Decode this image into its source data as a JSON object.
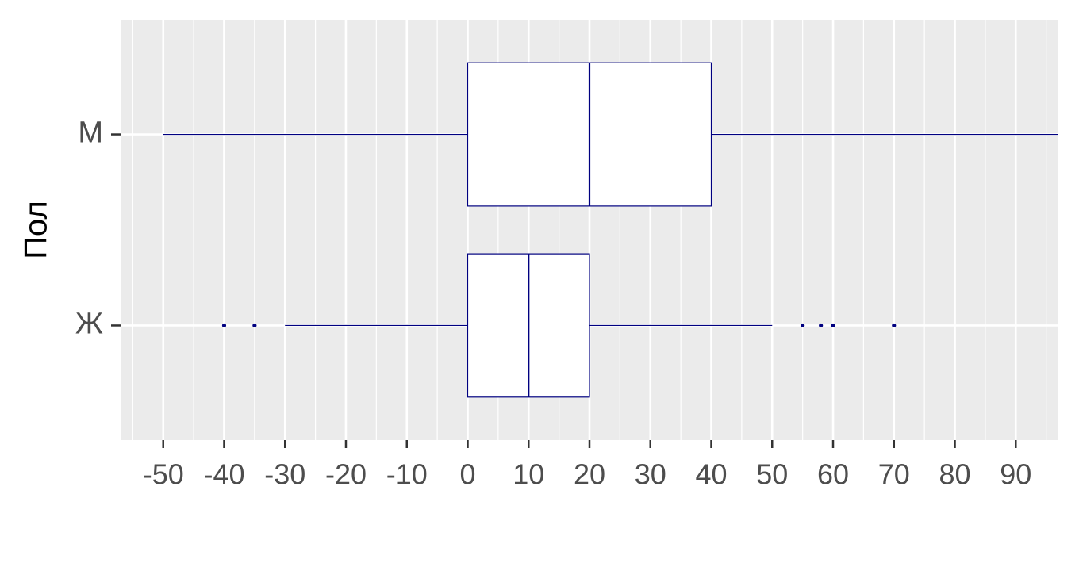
{
  "chart_data": {
    "type": "boxplot",
    "orientation": "horizontal",
    "y_label": "Пол",
    "categories": [
      "М",
      "Ж"
    ],
    "color": "#000080",
    "fill": "#ffffff",
    "boxes": [
      {
        "whisker_low": -50,
        "q1": 0,
        "median": 20,
        "q3": 40,
        "whisker_high": 100,
        "outliers": []
      },
      {
        "whisker_low": -30,
        "q1": 0,
        "median": 10,
        "q3": 20,
        "whisker_high": 50,
        "outliers": [
          -40,
          -35,
          55,
          58,
          60,
          70
        ]
      }
    ],
    "xlim": [
      -57,
      97
    ],
    "xticks": [
      -50,
      -40,
      -30,
      -20,
      -10,
      0,
      10,
      20,
      30,
      40,
      50,
      60,
      70,
      80,
      90
    ],
    "grid": true
  }
}
